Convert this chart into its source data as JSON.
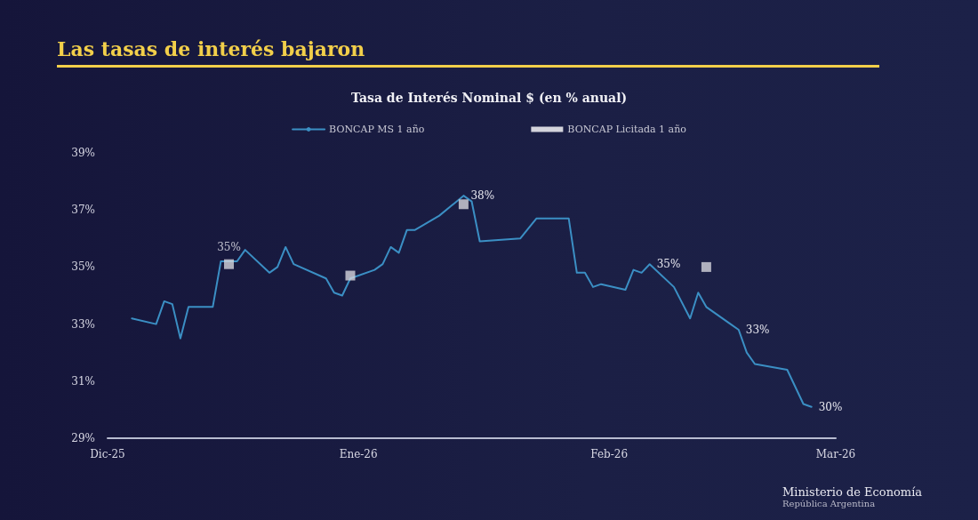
{
  "chart_data": {
    "type": "line",
    "title": "Las tasas de interés bajaron",
    "subtitle": "Tasa de Interés Nominal $ (en % anual)",
    "annotations": [
      "Ministerio de Economía",
      "República Argentina"
    ],
    "legend": "top",
    "grid": false,
    "xlim": [
      "2025-12-01",
      "2026-03-01"
    ],
    "xticks": [
      {
        "value": "2025-12-01",
        "label": "Dic-25"
      },
      {
        "value": "2026-01-01",
        "label": "Ene-26"
      },
      {
        "value": "2026-02-01",
        "label": "Feb-26"
      },
      {
        "value": "2026-03-01",
        "label": "Mar-26"
      }
    ],
    "ylim": [
      29,
      39
    ],
    "yticks": [
      {
        "value": 29,
        "label": "29%"
      },
      {
        "value": 31,
        "label": "31%"
      },
      {
        "value": 33,
        "label": "33%"
      },
      {
        "value": 35,
        "label": "35%"
      },
      {
        "value": 37,
        "label": "37%"
      },
      {
        "value": 39,
        "label": "39%"
      }
    ],
    "series": [
      {
        "name": "BONCAP MS 1 año",
        "color": "#3b8fc4",
        "marker": "none",
        "line_style": "solid",
        "x": [
          "2025-12-04",
          "2025-12-07",
          "2025-12-08",
          "2025-12-09",
          "2025-12-10",
          "2025-12-11",
          "2025-12-14",
          "2025-12-15",
          "2025-12-17",
          "2025-12-18",
          "2025-12-21",
          "2025-12-22",
          "2025-12-23",
          "2025-12-24",
          "2025-12-28",
          "2025-12-29",
          "2025-12-30",
          "2025-12-31",
          "2026-01-03",
          "2026-01-04",
          "2026-01-05",
          "2026-01-06",
          "2026-01-07",
          "2026-01-08",
          "2026-01-11",
          "2026-01-14",
          "2026-01-15",
          "2026-01-16",
          "2026-01-21",
          "2026-01-23",
          "2026-01-27",
          "2026-01-28",
          "2026-01-29",
          "2026-01-30",
          "2026-01-31",
          "2026-02-03",
          "2026-02-04",
          "2026-02-05",
          "2026-02-06",
          "2026-02-09",
          "2026-02-11",
          "2026-02-12",
          "2026-02-13",
          "2026-02-16",
          "2026-02-17",
          "2026-02-18",
          "2026-02-19",
          "2026-02-23",
          "2026-02-25",
          "2026-02-26"
        ],
        "values": [
          33.2,
          33.0,
          33.8,
          33.7,
          32.5,
          33.6,
          33.6,
          35.2,
          35.2,
          35.6,
          34.8,
          35.0,
          35.7,
          35.1,
          34.6,
          34.1,
          34.0,
          34.6,
          34.9,
          35.1,
          35.7,
          35.5,
          36.3,
          36.3,
          36.8,
          37.5,
          37.3,
          35.9,
          36.0,
          36.7,
          36.7,
          34.8,
          34.8,
          34.3,
          34.4,
          34.2,
          34.9,
          34.8,
          35.1,
          34.3,
          33.2,
          34.1,
          33.6,
          33.0,
          32.8,
          32.0,
          31.6,
          31.4,
          30.2,
          30.1
        ],
        "value_labels": [
          null,
          null,
          null,
          null,
          null,
          null,
          null,
          null,
          null,
          null,
          null,
          null,
          null,
          null,
          null,
          null,
          null,
          null,
          null,
          null,
          null,
          null,
          null,
          null,
          null,
          "38%",
          null,
          null,
          null,
          null,
          null,
          null,
          null,
          null,
          null,
          null,
          null,
          null,
          "35%",
          null,
          null,
          null,
          null,
          null,
          "33%",
          null,
          null,
          null,
          null,
          "30%"
        ]
      },
      {
        "name": "BONCAP Licitada 1 año",
        "type": "scatter",
        "color": "#d4d4dc",
        "marker": "square",
        "x": [
          "2025-12-16",
          "2025-12-31",
          "2026-01-14",
          "2026-02-13"
        ],
        "values": [
          35.1,
          34.7,
          37.2,
          35.0
        ],
        "value_labels": [
          "35%",
          null,
          null,
          null
        ]
      }
    ]
  }
}
